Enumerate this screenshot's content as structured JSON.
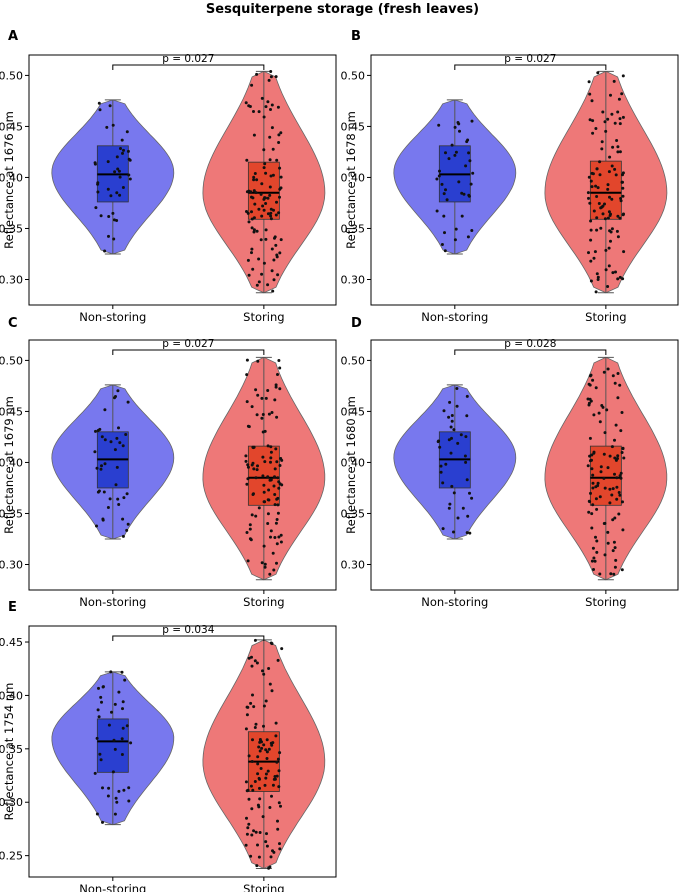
{
  "figure": {
    "title": "Sesquiterpene storage (fresh leaves)"
  },
  "colors": {
    "non_storing_violin": "#7878ee",
    "storing_violin": "#ee7878",
    "non_storing_box": "#2a3fd0",
    "storing_box": "#e2462c",
    "points": "#111111"
  },
  "chart_data": [
    {
      "type": "violin",
      "panel": "A",
      "ylabel": "Reflectance at 1676 nm",
      "categories": [
        "Non-storing",
        "Storing"
      ],
      "ylim": [
        0.275,
        0.52
      ],
      "yticks": [
        0.3,
        0.35,
        0.4,
        0.45,
        0.5
      ],
      "ytick_labels": [
        "0.30",
        "0.35",
        "0.40",
        "0.45",
        "0.50"
      ],
      "annotation": "p = 0.027",
      "series": [
        {
          "name": "Non-storing",
          "min": 0.325,
          "q1": 0.376,
          "median": 0.403,
          "q3": 0.431,
          "max": 0.476,
          "peak": 0.405,
          "n": 40
        },
        {
          "name": "Storing",
          "min": 0.287,
          "q1": 0.359,
          "median": 0.385,
          "q3": 0.415,
          "max": 0.504,
          "peak": 0.385,
          "n": 110
        }
      ]
    },
    {
      "type": "violin",
      "panel": "B",
      "ylabel": "Reflectance at 1678 nm",
      "categories": [
        "Non-storing",
        "Storing"
      ],
      "ylim": [
        0.275,
        0.52
      ],
      "yticks": [
        0.3,
        0.35,
        0.4,
        0.45,
        0.5
      ],
      "ytick_labels": [
        "0.30",
        "0.35",
        "0.40",
        "0.45",
        "0.50"
      ],
      "annotation": "p = 0.027",
      "series": [
        {
          "name": "Non-storing",
          "min": 0.325,
          "q1": 0.376,
          "median": 0.403,
          "q3": 0.431,
          "max": 0.476,
          "peak": 0.405,
          "n": 40
        },
        {
          "name": "Storing",
          "min": 0.287,
          "q1": 0.359,
          "median": 0.385,
          "q3": 0.416,
          "max": 0.504,
          "peak": 0.385,
          "n": 110
        }
      ]
    },
    {
      "type": "violin",
      "panel": "C",
      "ylabel": "Reflectance at 1679 nm",
      "categories": [
        "Non-storing",
        "Storing"
      ],
      "ylim": [
        0.275,
        0.52
      ],
      "yticks": [
        0.3,
        0.35,
        0.4,
        0.45,
        0.5
      ],
      "ytick_labels": [
        "0.30",
        "0.35",
        "0.40",
        "0.45",
        "0.50"
      ],
      "annotation": "p = 0.027",
      "series": [
        {
          "name": "Non-storing",
          "min": 0.325,
          "q1": 0.375,
          "median": 0.403,
          "q3": 0.43,
          "max": 0.476,
          "peak": 0.405,
          "n": 40
        },
        {
          "name": "Storing",
          "min": 0.285,
          "q1": 0.358,
          "median": 0.385,
          "q3": 0.416,
          "max": 0.503,
          "peak": 0.385,
          "n": 110
        }
      ]
    },
    {
      "type": "violin",
      "panel": "D",
      "ylabel": "Reflectance at 1680 nm",
      "categories": [
        "Non-storing",
        "Storing"
      ],
      "ylim": [
        0.275,
        0.52
      ],
      "yticks": [
        0.3,
        0.35,
        0.4,
        0.45,
        0.5
      ],
      "ytick_labels": [
        "0.30",
        "0.35",
        "0.40",
        "0.45",
        "0.50"
      ],
      "annotation": "p = 0.028",
      "series": [
        {
          "name": "Non-storing",
          "min": 0.325,
          "q1": 0.375,
          "median": 0.403,
          "q3": 0.43,
          "max": 0.476,
          "peak": 0.405,
          "n": 40
        },
        {
          "name": "Storing",
          "min": 0.285,
          "q1": 0.358,
          "median": 0.385,
          "q3": 0.416,
          "max": 0.503,
          "peak": 0.385,
          "n": 110
        }
      ]
    },
    {
      "type": "violin",
      "panel": "E",
      "ylabel": "Reflectance at 1754 nm",
      "categories": [
        "Non-storing",
        "Storing"
      ],
      "ylim": [
        0.23,
        0.465
      ],
      "yticks": [
        0.25,
        0.3,
        0.35,
        0.4,
        0.45
      ],
      "ytick_labels": [
        "0.25",
        "0.30",
        "0.35",
        "0.40",
        "0.45"
      ],
      "annotation": "p = 0.034",
      "series": [
        {
          "name": "Non-storing",
          "min": 0.279,
          "q1": 0.328,
          "median": 0.357,
          "q3": 0.378,
          "max": 0.422,
          "peak": 0.36,
          "n": 40
        },
        {
          "name": "Storing",
          "min": 0.238,
          "q1": 0.31,
          "median": 0.338,
          "q3": 0.366,
          "max": 0.452,
          "peak": 0.338,
          "n": 110
        }
      ]
    }
  ]
}
